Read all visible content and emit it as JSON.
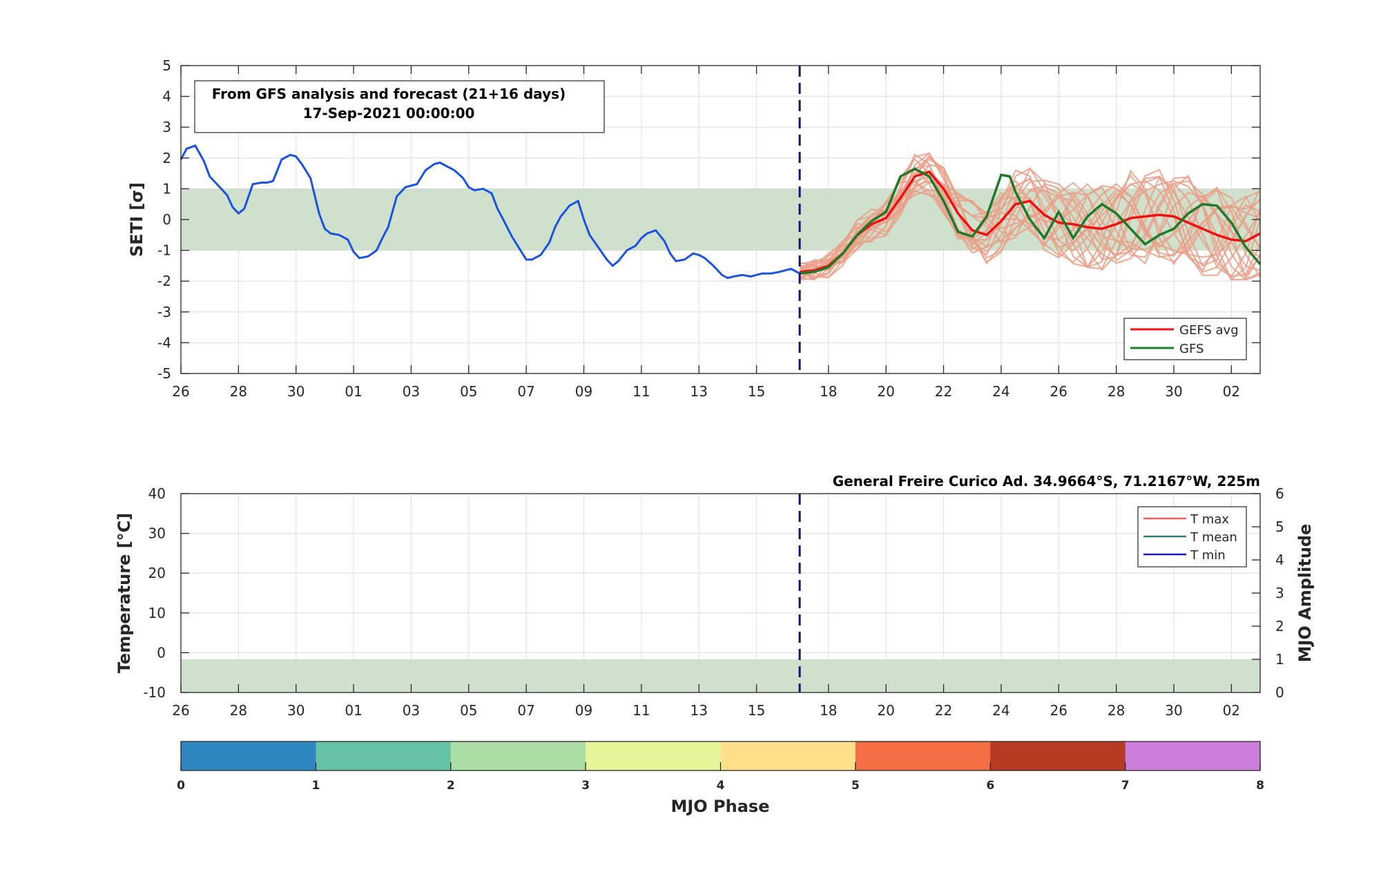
{
  "colors": {
    "band": "#cfe0cc",
    "analysis": "#1a52e0",
    "members": "#e9a088",
    "gefs_avg": "#f01010",
    "gfs": "#1d7a2a",
    "vline": "#13136b",
    "tmax": "#f05a5a",
    "tmean": "#2a7a78",
    "tmin": "#1a1ab0"
  },
  "top_panel": {
    "info_line1": "From GFS analysis and forecast (21+16 days)",
    "info_line2": "17-Sep-2021 00:00:00",
    "legend": [
      "GEFS avg",
      "GFS"
    ]
  },
  "bottom_panel": {
    "station_title": "General Freire Curico Ad. 34.9664°S, 71.2167°W, 225m",
    "legend": [
      "T max",
      "T mean",
      "T min"
    ]
  },
  "colorbar": {
    "label": "MJO Phase",
    "ticks": [
      "0",
      "1",
      "2",
      "3",
      "4",
      "5",
      "6",
      "7",
      "8"
    ],
    "colors": [
      "#2e86c1",
      "#66c2a5",
      "#abdda4",
      "#e6f598",
      "#fee08b",
      "#f46d43",
      "#b73a22",
      "#cc7ddb"
    ]
  },
  "chart_data": [
    {
      "type": "line",
      "xlabel": "",
      "ylabel": "SETI [σ]",
      "ylim": [
        -5,
        5
      ],
      "yticks": [
        "5",
        "4",
        "3",
        "2",
        "1",
        "0",
        "-1",
        "-2",
        "-3",
        "-4",
        "-5"
      ],
      "xlim_days": [
        0,
        37.5
      ],
      "xtick_labels": [
        "26",
        "28",
        "30",
        "01",
        "03",
        "05",
        "07",
        "09",
        "11",
        "13",
        "15",
        "18",
        "20",
        "22",
        "24",
        "26",
        "28",
        "30",
        "02"
      ],
      "xtick_days": [
        0,
        2,
        4,
        6,
        8,
        10,
        12,
        14,
        16,
        18,
        20,
        22.5,
        24.5,
        26.5,
        28.5,
        30.5,
        32.5,
        34.5,
        36.5
      ],
      "band": [
        -1,
        1
      ],
      "forecast_start_day": 21.5,
      "analysis": {
        "x": [
          0,
          0.2,
          0.5,
          0.8,
          1,
          1.3,
          1.6,
          1.8,
          2,
          2.2,
          2.5,
          2.8,
          3,
          3.2,
          3.5,
          3.8,
          4,
          4.2,
          4.5,
          4.8,
          5,
          5.2,
          5.5,
          5.8,
          6,
          6.2,
          6.5,
          6.8,
          7,
          7.2,
          7.5,
          7.8,
          8,
          8.2,
          8.5,
          8.8,
          9,
          9.2,
          9.5,
          9.8,
          10,
          10.2,
          10.5,
          10.8,
          11,
          11.2,
          11.5,
          11.8,
          12,
          12.2,
          12.5,
          12.8,
          13,
          13.2,
          13.5,
          13.8,
          14,
          14.2,
          14.5,
          14.8,
          15,
          15.2,
          15.5,
          15.8,
          16,
          16.2,
          16.5,
          16.8,
          17,
          17.2,
          17.5,
          17.8,
          18,
          18.2,
          18.5,
          18.8,
          19,
          19.2,
          19.5,
          19.8,
          20,
          20.2,
          20.5,
          20.8,
          21,
          21.2,
          21.5
        ],
        "y": [
          1.95,
          2.3,
          2.4,
          1.9,
          1.4,
          1.1,
          0.8,
          0.4,
          0.2,
          0.35,
          1.15,
          1.2,
          1.2,
          1.25,
          1.95,
          2.1,
          2.05,
          1.8,
          1.35,
          0.2,
          -0.3,
          -0.45,
          -0.5,
          -0.65,
          -1.05,
          -1.25,
          -1.2,
          -1.0,
          -0.6,
          -0.25,
          0.75,
          1.05,
          1.1,
          1.15,
          1.6,
          1.8,
          1.85,
          1.75,
          1.6,
          1.35,
          1.05,
          0.95,
          1.0,
          0.85,
          0.35,
          0.0,
          -0.55,
          -1.0,
          -1.3,
          -1.3,
          -1.15,
          -0.75,
          -0.25,
          0.1,
          0.45,
          0.6,
          0.0,
          -0.5,
          -0.9,
          -1.3,
          -1.5,
          -1.35,
          -1.0,
          -0.85,
          -0.6,
          -0.45,
          -0.35,
          -0.7,
          -1.1,
          -1.35,
          -1.3,
          -1.1,
          -1.15,
          -1.25,
          -1.5,
          -1.8,
          -1.9,
          -1.85,
          -1.8,
          -1.85,
          -1.8,
          -1.75,
          -1.75,
          -1.7,
          -1.65,
          -1.6,
          -1.75
        ]
      },
      "gefs_avg": {
        "x": [
          21.5,
          22,
          22.5,
          23,
          23.5,
          24,
          24.5,
          25,
          25.5,
          26,
          26.5,
          27,
          27.5,
          28,
          28.5,
          29,
          29.5,
          30,
          30.5,
          31,
          31.5,
          32,
          32.5,
          33,
          33.5,
          34,
          34.5,
          35,
          35.5,
          36,
          36.5,
          37,
          37.5
        ],
        "y": [
          -1.7,
          -1.65,
          -1.5,
          -1.1,
          -0.5,
          -0.15,
          0.05,
          0.7,
          1.4,
          1.55,
          1.0,
          0.2,
          -0.35,
          -0.5,
          -0.05,
          0.5,
          0.6,
          0.15,
          -0.1,
          -0.15,
          -0.25,
          -0.3,
          -0.15,
          0.05,
          0.1,
          0.15,
          0.1,
          -0.1,
          -0.3,
          -0.5,
          -0.65,
          -0.7,
          -0.45
        ]
      },
      "gfs": {
        "x": [
          21.5,
          22,
          22.5,
          23,
          23.5,
          24,
          24.5,
          25,
          25.5,
          26,
          26.5,
          27,
          27.5,
          28,
          28.5,
          28.8,
          29,
          29.5,
          30,
          30.5,
          31,
          31.5,
          32,
          32.5,
          33,
          33.5,
          34,
          34.5,
          35,
          35.5,
          36,
          36.5,
          37,
          37.5
        ],
        "y": [
          -1.75,
          -1.7,
          -1.55,
          -1.1,
          -0.5,
          -0.05,
          0.25,
          1.4,
          1.65,
          1.4,
          0.6,
          -0.4,
          -0.55,
          0.1,
          1.45,
          1.4,
          0.9,
          0.0,
          -0.6,
          0.25,
          -0.6,
          0.1,
          0.5,
          0.2,
          -0.3,
          -0.8,
          -0.5,
          -0.3,
          0.2,
          0.5,
          0.45,
          -0.1,
          -0.9,
          -1.45
        ]
      }
    },
    {
      "type": "line",
      "ylabel": "Temperature [°C]",
      "ylim": [
        -10,
        40
      ],
      "yticks": [
        "40",
        "30",
        "20",
        "10",
        "0",
        "-10"
      ],
      "y2label": "MJO Amplitude",
      "y2lim": [
        0,
        6
      ],
      "y2ticks": [
        "6",
        "5",
        "4",
        "3",
        "2",
        "1",
        "0"
      ],
      "xtick_labels": [
        "26",
        "28",
        "30",
        "01",
        "03",
        "05",
        "07",
        "09",
        "11",
        "13",
        "15",
        "18",
        "20",
        "22",
        "24",
        "26",
        "28",
        "30",
        "02"
      ],
      "amplitude_band": [
        0,
        1
      ],
      "series": [
        {
          "name": "T max",
          "values": []
        },
        {
          "name": "T mean",
          "values": []
        },
        {
          "name": "T min",
          "values": []
        }
      ]
    }
  ]
}
